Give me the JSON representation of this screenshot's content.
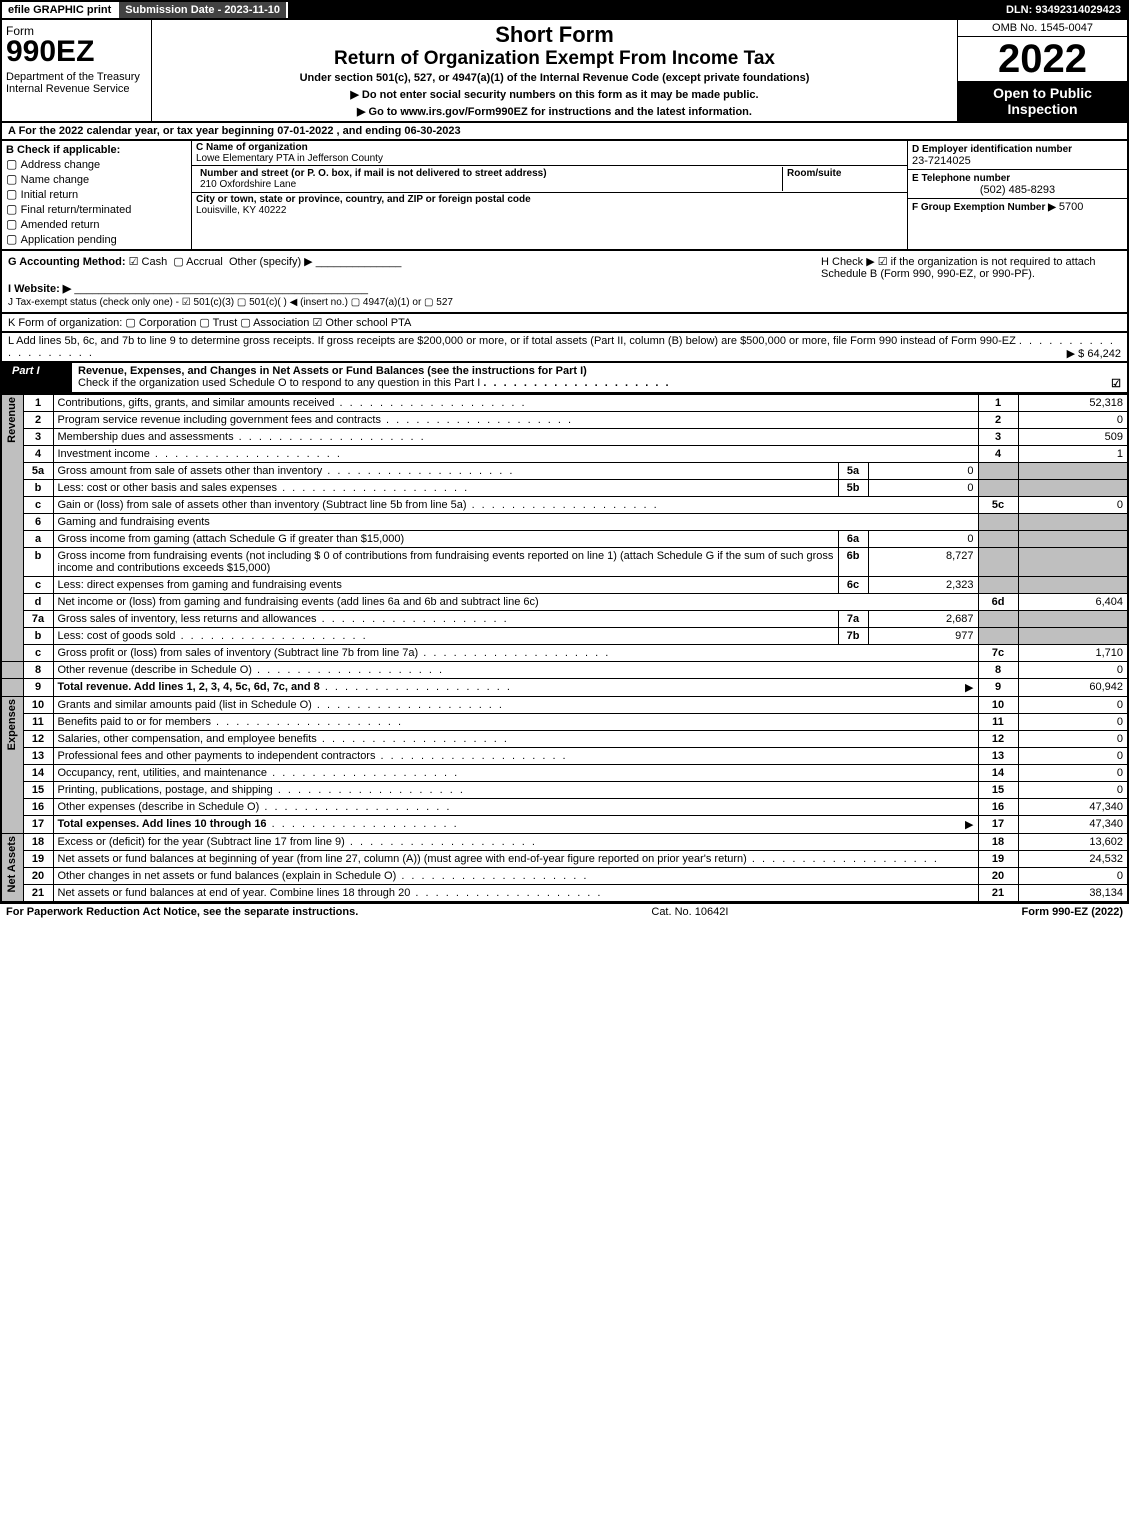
{
  "topbar": {
    "efile": "efile GRAPHIC print",
    "subdate_label": "Submission Date - 2023-11-10",
    "dln": "DLN: 93492314029423"
  },
  "header": {
    "form": "Form",
    "num": "990EZ",
    "dept": "Department of the Treasury",
    "irs": "Internal Revenue Service",
    "shortform": "Short Form",
    "title": "Return of Organization Exempt From Income Tax",
    "sub1": "Under section 501(c), 527, or 4947(a)(1) of the Internal Revenue Code (except private foundations)",
    "sub2": "▶ Do not enter social security numbers on this form as it may be made public.",
    "sub3": "▶ Go to www.irs.gov/Form990EZ for instructions and the latest information.",
    "omb": "OMB No. 1545-0047",
    "year": "2022",
    "open": "Open to Public Inspection"
  },
  "A": "A  For the 2022 calendar year, or tax year beginning 07-01-2022 , and ending 06-30-2023",
  "B": {
    "head": "B  Check if applicable:",
    "items": [
      "Address change",
      "Name change",
      "Initial return",
      "Final return/terminated",
      "Amended return",
      "Application pending"
    ]
  },
  "C": {
    "name_lbl": "C Name of organization",
    "name": "Lowe Elementary PTA in Jefferson County",
    "addr_lbl": "Number and street (or P. O. box, if mail is not delivered to street address)",
    "addr": "210 Oxfordshire Lane",
    "room_lbl": "Room/suite",
    "city_lbl": "City or town, state or province, country, and ZIP or foreign postal code",
    "city": "Louisville, KY  40222"
  },
  "D": {
    "ein_lbl": "D Employer identification number",
    "ein": "23-7214025",
    "tel_lbl": "E Telephone number",
    "tel": "(502) 485-8293",
    "grp_lbl": "F Group Exemption Number   ▶",
    "grp": "5700"
  },
  "G": {
    "label": "G Accounting Method:",
    "cash": "Cash",
    "accrual": "Accrual",
    "other": "Other (specify) ▶"
  },
  "H": "H   Check ▶  ☑  if the organization is not required to attach Schedule B (Form 990, 990-EZ, or 990-PF).",
  "I": "I Website: ▶",
  "J": "J Tax-exempt status (check only one) - ☑ 501(c)(3)  ▢ 501(c)(  ) ◀ (insert no.)  ▢ 4947(a)(1) or  ▢ 527",
  "K": "K Form of organization:   ▢ Corporation   ▢ Trust   ▢ Association   ☑ Other school PTA",
  "L": {
    "text": "L Add lines 5b, 6c, and 7b to line 9 to determine gross receipts. If gross receipts are $200,000 or more, or if total assets (Part II, column (B) below) are $500,000 or more, file Form 990 instead of Form 990-EZ",
    "amt": "▶ $ 64,242"
  },
  "part1": {
    "label": "Part I",
    "title": "Revenue, Expenses, and Changes in Net Assets or Fund Balances (see the instructions for Part I)",
    "sub": "Check if the organization used Schedule O to respond to any question in this Part I"
  },
  "sections": {
    "rev": "Revenue",
    "exp": "Expenses",
    "net": "Net Assets"
  },
  "rows": {
    "l1": {
      "n": "1",
      "d": "Contributions, gifts, grants, and similar amounts received",
      "c": "1",
      "a": "52,318"
    },
    "l2": {
      "n": "2",
      "d": "Program service revenue including government fees and contracts",
      "c": "2",
      "a": "0"
    },
    "l3": {
      "n": "3",
      "d": "Membership dues and assessments",
      "c": "3",
      "a": "509"
    },
    "l4": {
      "n": "4",
      "d": "Investment income",
      "c": "4",
      "a": "1"
    },
    "l5a": {
      "n": "5a",
      "d": "Gross amount from sale of assets other than inventory",
      "sl": "5a",
      "sv": "0"
    },
    "l5b": {
      "n": "b",
      "d": "Less: cost or other basis and sales expenses",
      "sl": "5b",
      "sv": "0"
    },
    "l5c": {
      "n": "c",
      "d": "Gain or (loss) from sale of assets other than inventory (Subtract line 5b from line 5a)",
      "c": "5c",
      "a": "0"
    },
    "l6": {
      "n": "6",
      "d": "Gaming and fundraising events"
    },
    "l6a": {
      "n": "a",
      "d": "Gross income from gaming (attach Schedule G if greater than $15,000)",
      "sl": "6a",
      "sv": "0"
    },
    "l6b": {
      "n": "b",
      "d": "Gross income from fundraising events (not including $  0             of contributions from fundraising events reported on line 1) (attach Schedule G if the sum of such gross income and contributions exceeds $15,000)",
      "sl": "6b",
      "sv": "8,727"
    },
    "l6c": {
      "n": "c",
      "d": "Less: direct expenses from gaming and fundraising events",
      "sl": "6c",
      "sv": "2,323"
    },
    "l6d": {
      "n": "d",
      "d": "Net income or (loss) from gaming and fundraising events (add lines 6a and 6b and subtract line 6c)",
      "c": "6d",
      "a": "6,404"
    },
    "l7a": {
      "n": "7a",
      "d": "Gross sales of inventory, less returns and allowances",
      "sl": "7a",
      "sv": "2,687"
    },
    "l7b": {
      "n": "b",
      "d": "Less: cost of goods sold",
      "sl": "7b",
      "sv": "977"
    },
    "l7c": {
      "n": "c",
      "d": "Gross profit or (loss) from sales of inventory (Subtract line 7b from line 7a)",
      "c": "7c",
      "a": "1,710"
    },
    "l8": {
      "n": "8",
      "d": "Other revenue (describe in Schedule O)",
      "c": "8",
      "a": "0"
    },
    "l9": {
      "n": "9",
      "d": "Total revenue. Add lines 1, 2, 3, 4, 5c, 6d, 7c, and 8",
      "c": "9",
      "a": "60,942",
      "bold": true,
      "arrow": true
    },
    "l10": {
      "n": "10",
      "d": "Grants and similar amounts paid (list in Schedule O)",
      "c": "10",
      "a": "0"
    },
    "l11": {
      "n": "11",
      "d": "Benefits paid to or for members",
      "c": "11",
      "a": "0"
    },
    "l12": {
      "n": "12",
      "d": "Salaries, other compensation, and employee benefits",
      "c": "12",
      "a": "0"
    },
    "l13": {
      "n": "13",
      "d": "Professional fees and other payments to independent contractors",
      "c": "13",
      "a": "0"
    },
    "l14": {
      "n": "14",
      "d": "Occupancy, rent, utilities, and maintenance",
      "c": "14",
      "a": "0"
    },
    "l15": {
      "n": "15",
      "d": "Printing, publications, postage, and shipping",
      "c": "15",
      "a": "0"
    },
    "l16": {
      "n": "16",
      "d": "Other expenses (describe in Schedule O)",
      "c": "16",
      "a": "47,340"
    },
    "l17": {
      "n": "17",
      "d": "Total expenses. Add lines 10 through 16",
      "c": "17",
      "a": "47,340",
      "bold": true,
      "arrow": true
    },
    "l18": {
      "n": "18",
      "d": "Excess or (deficit) for the year (Subtract line 17 from line 9)",
      "c": "18",
      "a": "13,602"
    },
    "l19": {
      "n": "19",
      "d": "Net assets or fund balances at beginning of year (from line 27, column (A)) (must agree with end-of-year figure reported on prior year's return)",
      "c": "19",
      "a": "24,532"
    },
    "l20": {
      "n": "20",
      "d": "Other changes in net assets or fund balances (explain in Schedule O)",
      "c": "20",
      "a": "0"
    },
    "l21": {
      "n": "21",
      "d": "Net assets or fund balances at end of year. Combine lines 18 through 20",
      "c": "21",
      "a": "38,134"
    }
  },
  "footer": {
    "left": "For Paperwork Reduction Act Notice, see the separate instructions.",
    "center": "Cat. No. 10642I",
    "right": "Form 990-EZ (2022)"
  }
}
